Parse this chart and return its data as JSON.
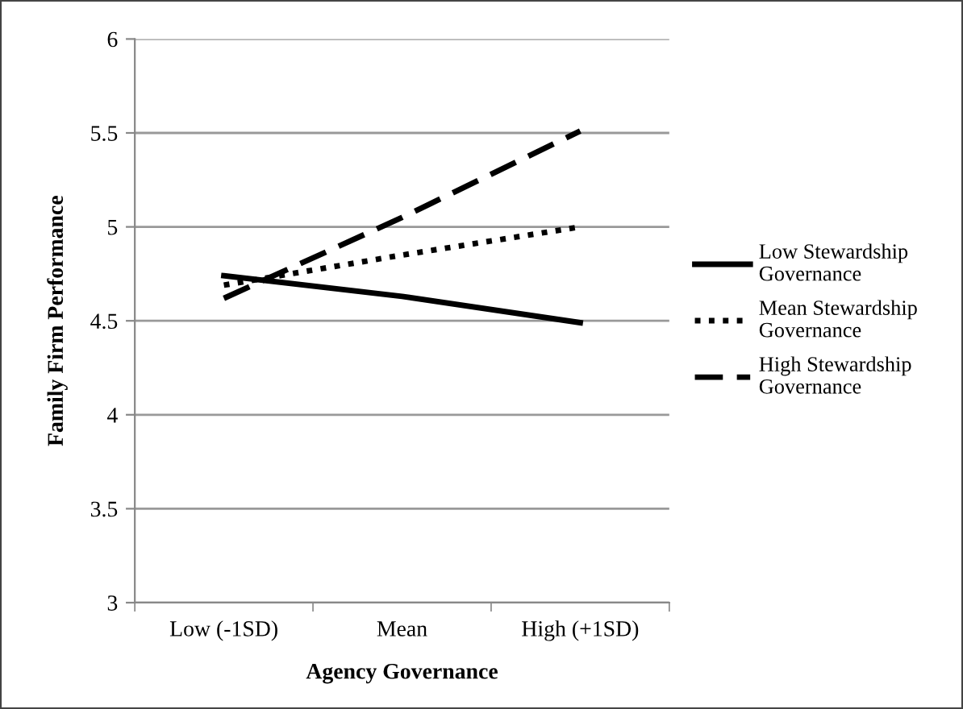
{
  "chart_data": {
    "type": "line",
    "xlabel": "Agency Governance",
    "ylabel": "Family Firm Performance",
    "categories": [
      "Low (-1SD)",
      "Mean",
      "High (+1SD)"
    ],
    "series": [
      {
        "name": "Low Stewardship Governance",
        "color": "#000000",
        "line_style": "solid",
        "values": [
          4.74,
          4.63,
          4.49
        ]
      },
      {
        "name": "Mean Stewardship Governance",
        "color": "#000000",
        "line_style": "dotted",
        "values": [
          4.69,
          4.85,
          5.0
        ]
      },
      {
        "name": "High Stewardship Governance",
        "color": "#000000",
        "line_style": "dashed",
        "values": [
          4.62,
          5.05,
          5.51
        ]
      }
    ],
    "ylim": [
      3,
      6
    ],
    "yticks": [
      3,
      3.5,
      4,
      4.5,
      5,
      5.5,
      6
    ],
    "grid": "y",
    "legend": "right",
    "marker": "none"
  }
}
